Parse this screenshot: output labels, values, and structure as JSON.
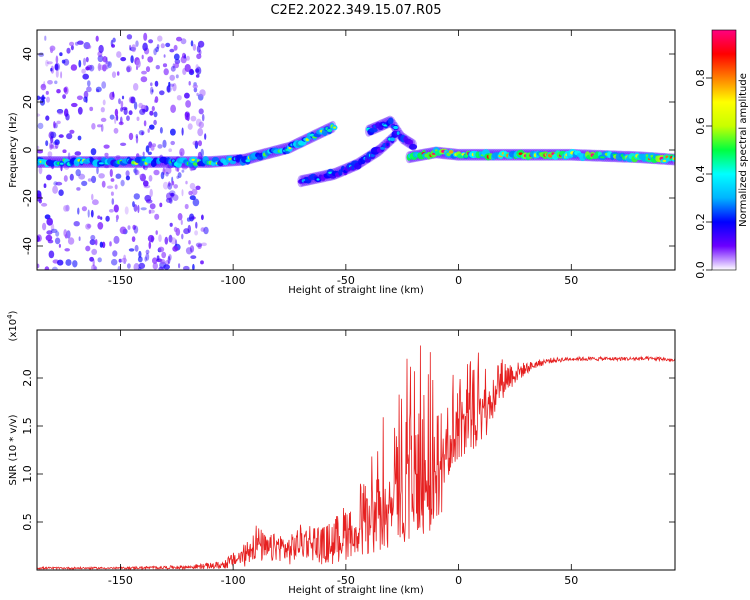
{
  "title": "C2E2.2022.349.15.07.R05",
  "chart_data": [
    {
      "type": "heatmap",
      "title": "C2E2.2022.349.15.07.R05",
      "xlabel": "Height of straight line (km)",
      "ylabel": "Frequency (Hz)",
      "xlim": [
        -187,
        96
      ],
      "ylim": [
        -50,
        50
      ],
      "xticks": [
        -150,
        -100,
        -50,
        0,
        50
      ],
      "yticks": [
        -40,
        -20,
        0,
        20,
        40
      ],
      "colorbar": {
        "label": "Normalized spectral amplitude",
        "range": [
          0.0,
          1.0
        ],
        "ticks": [
          "0.0",
          "0.2",
          "0.4",
          "0.6",
          "0.8"
        ],
        "colormap": [
          "#ffffff",
          "#6b00ff",
          "#0000ff",
          "#00b4ff",
          "#00ffff",
          "#00ff40",
          "#c8ff00",
          "#ffff00",
          "#ff8000",
          "#ff0000",
          "#ff0080"
        ]
      },
      "features": [
        {
          "name": "scattered noise region",
          "x_range": [
            -187,
            -112
          ],
          "y_range": [
            -50,
            48
          ],
          "amplitude": 0.12
        },
        {
          "name": "main trace segment 1",
          "x": [
            -187,
            -150,
            -110,
            -95,
            -75,
            -55
          ],
          "y": [
            -5,
            -5,
            -5,
            -4,
            1,
            10
          ],
          "amplitude": 0.55
        },
        {
          "name": "branch trace",
          "x": [
            -70,
            -55,
            -45,
            -35,
            -28
          ],
          "y": [
            -13,
            -10,
            -6,
            0,
            6
          ],
          "amplitude": 0.35
        },
        {
          "name": "upper cluster",
          "x": [
            -40,
            -35,
            -30,
            -25,
            -20
          ],
          "y": [
            8,
            10,
            12,
            5,
            2
          ],
          "amplitude": 0.35
        },
        {
          "name": "main trace segment 2",
          "x": [
            -22,
            -10,
            0,
            20,
            50,
            80,
            96
          ],
          "y": [
            -3,
            -1,
            -2,
            -2,
            -2,
            -3,
            -4
          ],
          "amplitude": 0.85
        }
      ]
    },
    {
      "type": "line",
      "xlabel": "Height of straight line (km)",
      "ylabel": "SNR (10 * v/v)",
      "y_multiplier_label": "(x10",
      "y_multiplier_exp": "4",
      "y_multiplier_close": ")",
      "xlim": [
        -187,
        96
      ],
      "ylim": [
        0,
        2.5
      ],
      "xticks": [
        -150,
        -100,
        -50,
        0,
        50
      ],
      "yticks": [
        0.5,
        1.0,
        1.5,
        2.0
      ],
      "ytick_labels": [
        "0.5",
        "1.0",
        "1.5",
        "2.0"
      ],
      "series": [
        {
          "color": "#e62020",
          "x": [
            -187,
            -150,
            -120,
            -105,
            -100,
            -95,
            -90,
            -85,
            -80,
            -75,
            -70,
            -65,
            -60,
            -55,
            -50,
            -45,
            -40,
            -35,
            -30,
            -25,
            -20,
            -15,
            -10,
            -5,
            0,
            5,
            10,
            15,
            20,
            25,
            30,
            35,
            40,
            50,
            60,
            70,
            80,
            90,
            96
          ],
          "y": [
            0.02,
            0.02,
            0.03,
            0.05,
            0.1,
            0.15,
            0.3,
            0.2,
            0.25,
            0.2,
            0.3,
            0.3,
            0.25,
            0.3,
            0.4,
            0.5,
            0.6,
            0.9,
            1.0,
            1.3,
            1.2,
            1.4,
            1.3,
            1.5,
            1.7,
            1.7,
            1.8,
            1.9,
            2.0,
            2.05,
            2.1,
            2.15,
            2.18,
            2.2,
            2.2,
            2.2,
            2.2,
            2.2,
            2.18
          ],
          "spread": [
            0.01,
            0.01,
            0.02,
            0.04,
            0.08,
            0.12,
            0.2,
            0.15,
            0.15,
            0.15,
            0.18,
            0.2,
            0.2,
            0.25,
            0.3,
            0.35,
            0.45,
            0.7,
            0.8,
            1.0,
            1.1,
            1.0,
            0.9,
            0.7,
            0.6,
            0.5,
            0.5,
            0.4,
            0.2,
            0.12,
            0.06,
            0.04,
            0.03,
            0.02,
            0.02,
            0.02,
            0.02,
            0.02,
            0.02
          ]
        }
      ]
    }
  ]
}
